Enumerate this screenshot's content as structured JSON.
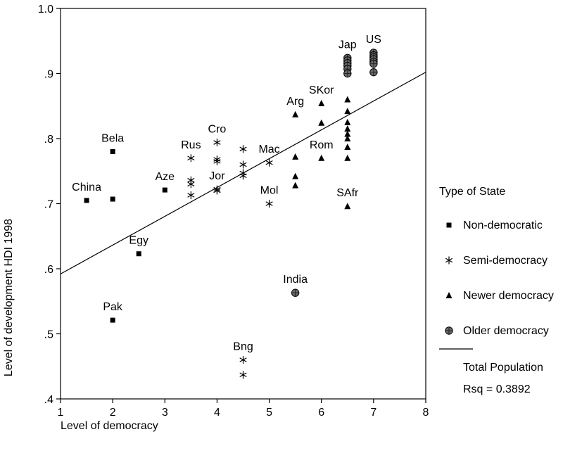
{
  "chart_data": {
    "type": "scatter",
    "xlabel": "Level of democracy",
    "ylabel": "Level of development HDI 1998",
    "xlim": [
      1,
      8
    ],
    "ylim": [
      0.4,
      1.0
    ],
    "x_ticks": [
      1,
      2,
      3,
      4,
      5,
      6,
      7,
      8
    ],
    "x_tick_labels": [
      "1",
      "2",
      "3",
      "4",
      "5",
      "6",
      "7",
      "8"
    ],
    "y_ticks": [
      0.4,
      0.5,
      0.6,
      0.7,
      0.8,
      0.9,
      1.0
    ],
    "y_tick_labels": [
      ".4",
      ".5",
      ".6",
      ".7",
      ".8",
      ".9",
      "1.0"
    ],
    "grid": false,
    "legend": {
      "title": "Type of State",
      "placement": "right",
      "entries": [
        "Non-democratic",
        "Semi-democracy",
        "Newer democracy",
        "Older democracy",
        "Total Population"
      ],
      "note": "Rsq = 0.3892"
    },
    "series": [
      {
        "name": "Non-democratic",
        "marker": "square",
        "points": [
          {
            "x": 1.5,
            "y": 0.705
          },
          {
            "x": 2,
            "y": 0.78
          },
          {
            "x": 2,
            "y": 0.707
          },
          {
            "x": 2.5,
            "y": 0.623
          },
          {
            "x": 3,
            "y": 0.721
          },
          {
            "x": 2,
            "y": 0.521
          }
        ]
      },
      {
        "name": "Semi-democracy",
        "marker": "asterisk",
        "points": [
          {
            "x": 3.5,
            "y": 0.77
          },
          {
            "x": 3.5,
            "y": 0.736
          },
          {
            "x": 3.5,
            "y": 0.73
          },
          {
            "x": 3.5,
            "y": 0.713
          },
          {
            "x": 4,
            "y": 0.794
          },
          {
            "x": 4,
            "y": 0.768
          },
          {
            "x": 4,
            "y": 0.765
          },
          {
            "x": 4,
            "y": 0.722
          },
          {
            "x": 4,
            "y": 0.72
          },
          {
            "x": 4.5,
            "y": 0.784
          },
          {
            "x": 4.5,
            "y": 0.76
          },
          {
            "x": 4.5,
            "y": 0.747
          },
          {
            "x": 4.5,
            "y": 0.743
          },
          {
            "x": 5,
            "y": 0.763
          },
          {
            "x": 5,
            "y": 0.7
          },
          {
            "x": 4.5,
            "y": 0.46
          },
          {
            "x": 4.5,
            "y": 0.437
          }
        ]
      },
      {
        "name": "Newer democracy",
        "marker": "triangle",
        "points": [
          {
            "x": 5.5,
            "y": 0.837
          },
          {
            "x": 5.5,
            "y": 0.772
          },
          {
            "x": 5.5,
            "y": 0.742
          },
          {
            "x": 5.5,
            "y": 0.728
          },
          {
            "x": 6,
            "y": 0.854
          },
          {
            "x": 6,
            "y": 0.824
          },
          {
            "x": 6,
            "y": 0.77
          },
          {
            "x": 6.5,
            "y": 0.86
          },
          {
            "x": 6.5,
            "y": 0.842
          },
          {
            "x": 6.5,
            "y": 0.825
          },
          {
            "x": 6.5,
            "y": 0.815
          },
          {
            "x": 6.5,
            "y": 0.807
          },
          {
            "x": 6.5,
            "y": 0.8
          },
          {
            "x": 6.5,
            "y": 0.787
          },
          {
            "x": 6.5,
            "y": 0.77
          },
          {
            "x": 6.5,
            "y": 0.696
          }
        ]
      },
      {
        "name": "Older democracy",
        "marker": "circle",
        "points": [
          {
            "x": 6.5,
            "y": 0.924
          },
          {
            "x": 6.5,
            "y": 0.92
          },
          {
            "x": 6.5,
            "y": 0.916
          },
          {
            "x": 6.5,
            "y": 0.912
          },
          {
            "x": 6.5,
            "y": 0.907
          },
          {
            "x": 6.5,
            "y": 0.9
          },
          {
            "x": 7,
            "y": 0.932
          },
          {
            "x": 7,
            "y": 0.928
          },
          {
            "x": 7,
            "y": 0.925
          },
          {
            "x": 7,
            "y": 0.922
          },
          {
            "x": 7,
            "y": 0.918
          },
          {
            "x": 7,
            "y": 0.915
          },
          {
            "x": 7,
            "y": 0.902
          },
          {
            "x": 5.5,
            "y": 0.563
          }
        ]
      }
    ],
    "fit_line": {
      "name": "Total Population",
      "points": [
        {
          "x": 1,
          "y": 0.592
        },
        {
          "x": 8,
          "y": 0.902
        }
      ]
    },
    "annotations": [
      {
        "text": "China",
        "x": 1.5,
        "y": 0.705
      },
      {
        "text": "Bela",
        "x": 2,
        "y": 0.78
      },
      {
        "text": "Aze",
        "x": 3,
        "y": 0.721
      },
      {
        "text": "Egy",
        "x": 2.5,
        "y": 0.623
      },
      {
        "text": "Pak",
        "x": 2,
        "y": 0.521
      },
      {
        "text": "Rus",
        "x": 3.5,
        "y": 0.77
      },
      {
        "text": "Cro",
        "x": 4,
        "y": 0.794
      },
      {
        "text": "Jor",
        "x": 4,
        "y": 0.722
      },
      {
        "text": "Mac",
        "x": 5,
        "y": 0.763
      },
      {
        "text": "Mol",
        "x": 5,
        "y": 0.7
      },
      {
        "text": "Bng",
        "x": 4.5,
        "y": 0.46
      },
      {
        "text": "India",
        "x": 5.5,
        "y": 0.563
      },
      {
        "text": "Arg",
        "x": 5.5,
        "y": 0.837
      },
      {
        "text": "SKor",
        "x": 6,
        "y": 0.854
      },
      {
        "text": "Rom",
        "x": 6,
        "y": 0.77
      },
      {
        "text": "SAfr",
        "x": 6.5,
        "y": 0.696
      },
      {
        "text": "Jap",
        "x": 6.5,
        "y": 0.924
      },
      {
        "text": "US",
        "x": 7,
        "y": 0.932
      }
    ]
  }
}
